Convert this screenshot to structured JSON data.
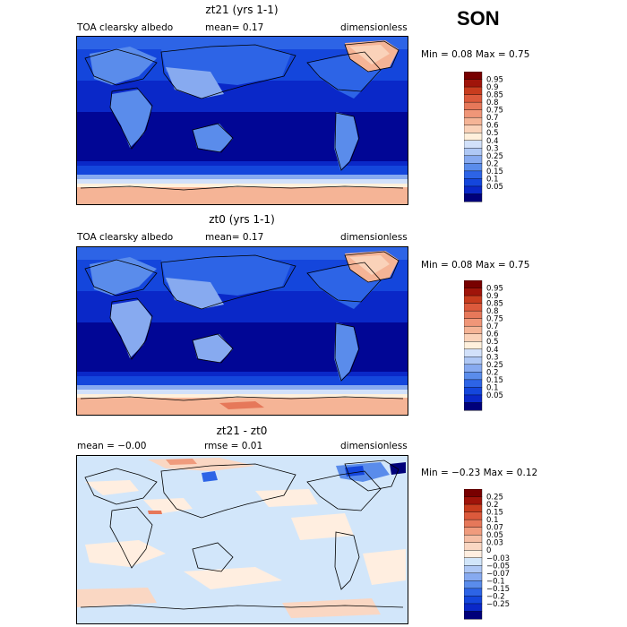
{
  "season": "SON",
  "panels": [
    {
      "title": "zt21 (yrs 1-1)",
      "left_label": "TOA clearsky albedo",
      "center_label": "mean=   0.17",
      "right_label": "dimensionless",
      "minmax": "Min =    0.08  Max =    0.75"
    },
    {
      "title": "zt0 (yrs 1-1)",
      "left_label": "TOA clearsky albedo",
      "center_label": "mean=   0.17",
      "right_label": "dimensionless",
      "minmax": "Min =    0.08  Max =    0.75"
    },
    {
      "title": "zt21 - zt0",
      "left_label": "mean =   −0.00",
      "center_label": "rmse =    0.01",
      "right_label": "dimensionless",
      "minmax": "Min =   −0.23  Max =    0.12"
    }
  ],
  "colors": {
    "albedo_scale": [
      "#00007a",
      "#0a28c8",
      "#1446dc",
      "#2d64e6",
      "#5a8ceb",
      "#87aaf0",
      "#afc8f5",
      "#d2e1fa",
      "#fff0dc",
      "#fad2b9",
      "#f5b496",
      "#f09678",
      "#e6785a",
      "#dc5a3c",
      "#c83c1e",
      "#a0140a",
      "#780000"
    ],
    "diff_scale": [
      "#00007a",
      "#0a28c8",
      "#1446dc",
      "#2d64e6",
      "#5a8ceb",
      "#87aaf0",
      "#afc8f5",
      "#d2e6fa",
      "#ffeee0",
      "#fad7c3",
      "#f5bea5",
      "#f09b7d",
      "#e6785a",
      "#dc5a3c",
      "#c83c1e",
      "#a0140a",
      "#780000"
    ]
  },
  "chart_data": [
    {
      "type": "heatmap",
      "title": "zt21 (yrs 1-1)",
      "variable": "TOA clearsky albedo",
      "units": "dimensionless",
      "mean": 0.17,
      "min": 0.08,
      "max": 0.75,
      "colorbar_levels": [
        "0.95",
        "0.9",
        "0.85",
        "0.8",
        "0.75",
        "0.7",
        "0.6",
        "0.5",
        "0.4",
        "0.3",
        "0.25",
        "0.2",
        "0.15",
        "0.1",
        "0.05"
      ]
    },
    {
      "type": "heatmap",
      "title": "zt0 (yrs 1-1)",
      "variable": "TOA clearsky albedo",
      "units": "dimensionless",
      "mean": 0.17,
      "min": 0.08,
      "max": 0.75,
      "colorbar_levels": [
        "0.95",
        "0.9",
        "0.85",
        "0.8",
        "0.75",
        "0.7",
        "0.6",
        "0.5",
        "0.4",
        "0.3",
        "0.25",
        "0.2",
        "0.15",
        "0.1",
        "0.05"
      ]
    },
    {
      "type": "heatmap",
      "title": "zt21 - zt0",
      "units": "dimensionless",
      "mean": -0.0,
      "rmse": 0.01,
      "min": -0.23,
      "max": 0.12,
      "colorbar_levels": [
        "0.25",
        "0.2",
        "0.15",
        "0.1",
        "0.07",
        "0.05",
        "0.03",
        "0",
        "−0.03",
        "−0.05",
        "−0.07",
        "−0.1",
        "−0.15",
        "−0.2",
        "−0.25"
      ]
    }
  ]
}
